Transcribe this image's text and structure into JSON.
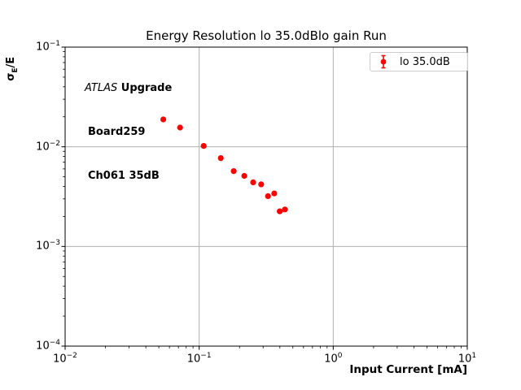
{
  "chart_data": {
    "type": "scatter",
    "title": "Energy Resolution lo 35.0dBlo gain Run",
    "xlabel": "Input Current [mA]",
    "ylabel": "σE/E",
    "ylabel_parts": {
      "sigma": "σ",
      "sub": "E",
      "rest": "/E"
    },
    "xlim": [
      0.01,
      10
    ],
    "ylim": [
      0.0001,
      0.1
    ],
    "xscale": "log",
    "yscale": "log",
    "grid": true,
    "x_tick_exponents": [
      -2,
      -1,
      0,
      1
    ],
    "y_tick_exponents": [
      -1,
      -2,
      -3,
      -4
    ],
    "series": [
      {
        "name": "lo 35.0dB",
        "marker": "errorbar-dot",
        "color": "#ff0000",
        "x": [
          0.054,
          0.072,
          0.108,
          0.145,
          0.181,
          0.217,
          0.253,
          0.29,
          0.326,
          0.363,
          0.399,
          0.436
        ],
        "y": [
          0.0188,
          0.0156,
          0.0102,
          0.0077,
          0.0057,
          0.0051,
          0.0044,
          0.0042,
          0.0032,
          0.0034,
          0.00225,
          0.00235
        ]
      }
    ],
    "legend": {
      "position": "upper right",
      "entries": [
        {
          "label": "lo 35.0dB",
          "color": "#ff0000"
        }
      ]
    },
    "annotation": {
      "line1_italic": "ATLAS",
      "line1_bold": " Upgrade",
      "line2": "Board259",
      "line3": "Ch061 35dB"
    },
    "colors": {
      "marker": "#ff0000",
      "grid": "#b0b0b0",
      "axis": "#000000",
      "legend_border": "#cccccc"
    }
  }
}
